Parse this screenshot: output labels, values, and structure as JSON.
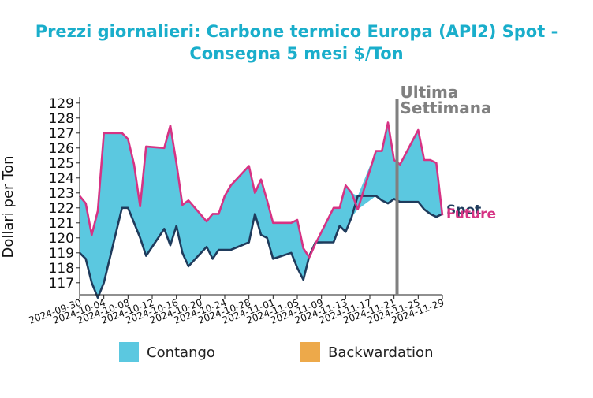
{
  "chart_data": {
    "type": "area",
    "title_line1": "Prezzi giornalieri: Carbone termico Europa (API2) Spot -",
    "title_line2": "Consegna 5 mesi $/Ton",
    "ylabel": "Dollari per Ton",
    "ylim": [
      116.2,
      129.2
    ],
    "y_ticks": [
      117,
      118,
      119,
      120,
      121,
      122,
      123,
      124,
      125,
      126,
      127,
      128,
      129
    ],
    "x_start": "2024-09-30",
    "x_end": "2024-11-29",
    "x_ticks": [
      "2024-09-30",
      "2024-10-04",
      "2024-10-08",
      "2024-10-12",
      "2024-10-16",
      "2024-10-20",
      "2024-10-24",
      "2024-10-28",
      "2024-11-01",
      "2024-11-05",
      "2024-11-09",
      "2024-11-13",
      "2024-11-17",
      "2024-11-21",
      "2024-11-25",
      "2024-11-29"
    ],
    "dates": [
      "2024-09-30",
      "2024-10-01",
      "2024-10-02",
      "2024-10-03",
      "2024-10-04",
      "2024-10-07",
      "2024-10-08",
      "2024-10-09",
      "2024-10-10",
      "2024-10-11",
      "2024-10-14",
      "2024-10-15",
      "2024-10-16",
      "2024-10-17",
      "2024-10-18",
      "2024-10-21",
      "2024-10-22",
      "2024-10-23",
      "2024-10-24",
      "2024-10-25",
      "2024-10-28",
      "2024-10-29",
      "2024-10-30",
      "2024-10-31",
      "2024-11-01",
      "2024-11-04",
      "2024-11-05",
      "2024-11-06",
      "2024-11-07",
      "2024-11-08",
      "2024-11-11",
      "2024-11-12",
      "2024-11-13",
      "2024-11-14",
      "2024-11-15",
      "2024-11-18",
      "2024-11-19",
      "2024-11-20",
      "2024-11-21",
      "2024-11-22",
      "2024-11-25",
      "2024-11-26",
      "2024-11-27",
      "2024-11-28",
      "2024-11-29"
    ],
    "series": [
      {
        "name": "Spot",
        "color": "#1f3b5c",
        "values": [
          119.0,
          118.6,
          117.0,
          116.0,
          117.0,
          122.0,
          122.0,
          121.0,
          120.0,
          118.8,
          120.6,
          119.5,
          120.8,
          119.0,
          118.1,
          119.4,
          118.6,
          119.2,
          119.2,
          119.2,
          119.7,
          121.6,
          120.2,
          120.0,
          118.6,
          119.0,
          118.0,
          117.2,
          118.8,
          119.7,
          119.7,
          120.8,
          120.4,
          121.4,
          122.8,
          122.8,
          122.5,
          122.3,
          122.6,
          122.4,
          122.4,
          121.9,
          121.6,
          121.4,
          121.6
        ]
      },
      {
        "name": "Future",
        "color": "#d63384",
        "values": [
          122.8,
          122.3,
          120.2,
          121.8,
          127.0,
          127.0,
          126.6,
          124.9,
          122.1,
          126.1,
          126.0,
          127.5,
          125.0,
          122.2,
          122.5,
          121.1,
          121.6,
          121.6,
          122.8,
          123.5,
          124.8,
          123.0,
          123.9,
          122.5,
          121.0,
          121.0,
          121.2,
          119.3,
          118.7,
          119.6,
          122.0,
          122.0,
          123.5,
          123.0,
          121.9,
          125.8,
          125.8,
          127.7,
          125.2,
          124.9,
          127.2,
          125.2,
          125.2,
          125.0,
          121.5
        ]
      }
    ],
    "annotation": {
      "label_line1": "Ultima",
      "label_line2": "Settimana",
      "date": "2024-11-22",
      "color": "#808080"
    },
    "end_labels": {
      "spot": "Spot",
      "future": "Future"
    },
    "legend": {
      "position": "bottom",
      "items": [
        {
          "label": "Contango",
          "color": "#5bc8e0"
        },
        {
          "label": "Backwardation",
          "color": "#eda94a"
        }
      ]
    }
  }
}
